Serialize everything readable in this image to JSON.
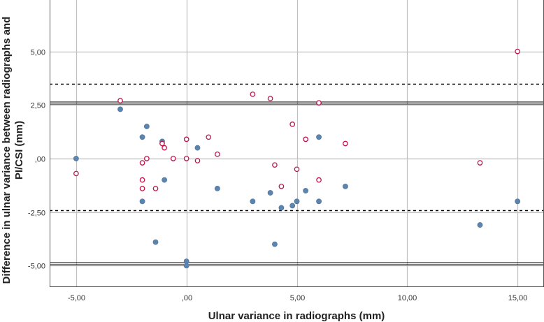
{
  "chart_data": {
    "type": "scatter",
    "title": "",
    "xlabel": "Ulnar variance in radiographs (mm)",
    "ylabel_line1": "Difference in ulnar variance between radiographs and",
    "ylabel_line2": "PI/CSI (mm)",
    "xlim": [
      -6.2,
      16.2
    ],
    "ylim": [
      -6.0,
      7.4
    ],
    "x_ticks": [
      -5,
      0,
      5,
      10,
      15
    ],
    "x_tick_labels": [
      "-5,00",
      ",00",
      "5,00",
      "10,00",
      "15,00"
    ],
    "y_ticks": [
      5,
      2.5,
      0,
      -2.5,
      -5
    ],
    "y_tick_labels": [
      "5,00",
      "2,50",
      ",00",
      "-2,50",
      "-5,00"
    ],
    "grid": true,
    "colors": {
      "filled": "#5b84b1",
      "open": "#c0154a",
      "line": "#000000",
      "grid": "#bfbfbf"
    },
    "reference_lines": [
      {
        "name": "upper-limit-solid",
        "y": 2.6,
        "style": "solid"
      },
      {
        "name": "upper-limit-dashed",
        "y": 3.5,
        "style": "dashed"
      },
      {
        "name": "lower-limit-dashed",
        "y": -2.4,
        "style": "dashed"
      },
      {
        "name": "lower-limit-solid",
        "y": -4.9,
        "style": "solid"
      }
    ],
    "series": [
      {
        "name": "filled",
        "marker": "filled-circle",
        "points": [
          [
            -5,
            0
          ],
          [
            -3,
            2.3
          ],
          [
            -2,
            1.0
          ],
          [
            -1.8,
            1.5
          ],
          [
            -2,
            -2.0
          ],
          [
            -1.4,
            -3.9
          ],
          [
            -1.1,
            0.8
          ],
          [
            -1,
            -1.0
          ],
          [
            0,
            -4.8
          ],
          [
            0,
            -5.0
          ],
          [
            0.5,
            0.5
          ],
          [
            1.4,
            -1.4
          ],
          [
            3,
            -2.0
          ],
          [
            3.8,
            -1.6
          ],
          [
            4,
            -4.0
          ],
          [
            4.3,
            -2.3
          ],
          [
            4.8,
            -2.2
          ],
          [
            5,
            -2.0
          ],
          [
            5.4,
            -1.5
          ],
          [
            6,
            1.0
          ],
          [
            6,
            -2.0
          ],
          [
            7.2,
            -1.3
          ],
          [
            13.3,
            -3.1
          ],
          [
            15,
            -2.0
          ]
        ]
      },
      {
        "name": "open",
        "marker": "open-circle",
        "points": [
          [
            -5,
            -0.7
          ],
          [
            -3,
            2.7
          ],
          [
            -2,
            -0.2
          ],
          [
            -1.8,
            0
          ],
          [
            -2,
            -1.0
          ],
          [
            -2,
            -1.4
          ],
          [
            -1.4,
            -1.4
          ],
          [
            -1.1,
            0.7
          ],
          [
            -1,
            0.5
          ],
          [
            -0.6,
            0
          ],
          [
            0,
            0.9
          ],
          [
            0,
            0
          ],
          [
            0.5,
            -0.1
          ],
          [
            1,
            1.0
          ],
          [
            1.4,
            0.2
          ],
          [
            3,
            3.0
          ],
          [
            3.8,
            2.8
          ],
          [
            4,
            -0.3
          ],
          [
            4.3,
            -1.3
          ],
          [
            4.8,
            1.6
          ],
          [
            5,
            -0.5
          ],
          [
            5.4,
            0.9
          ],
          [
            6,
            2.6
          ],
          [
            6,
            -1.0
          ],
          [
            7.2,
            0.7
          ],
          [
            13.3,
            -0.2
          ],
          [
            15,
            5.0
          ]
        ]
      }
    ]
  }
}
